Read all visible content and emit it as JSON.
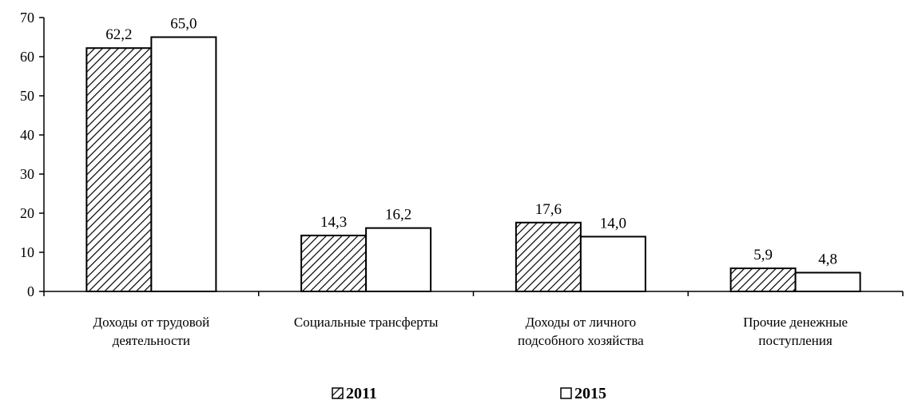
{
  "chart_data": {
    "type": "bar",
    "categories": [
      [
        "Доходы от трудовой",
        "деятельности"
      ],
      [
        "Социальные трансферты"
      ],
      [
        "Доходы от личного",
        "подсобного хозяйства"
      ],
      [
        "Прочие денежные",
        "поступления"
      ]
    ],
    "series": [
      {
        "name": "2011",
        "values": [
          62.2,
          14.3,
          17.6,
          5.9
        ],
        "value_labels": [
          "62,2",
          "14,3",
          "17,6",
          "5,9"
        ],
        "fill": "hatched"
      },
      {
        "name": "2015",
        "values": [
          65.0,
          16.2,
          14.0,
          4.8
        ],
        "value_labels": [
          "65,0",
          "16,2",
          "14,0",
          "4,8"
        ],
        "fill": "#ffffff"
      }
    ],
    "y_ticks": [
      "0",
      "10",
      "20",
      "30",
      "40",
      "50",
      "60",
      "70"
    ],
    "ylim": [
      0,
      70
    ],
    "grid": false,
    "legend_position": "bottom"
  }
}
